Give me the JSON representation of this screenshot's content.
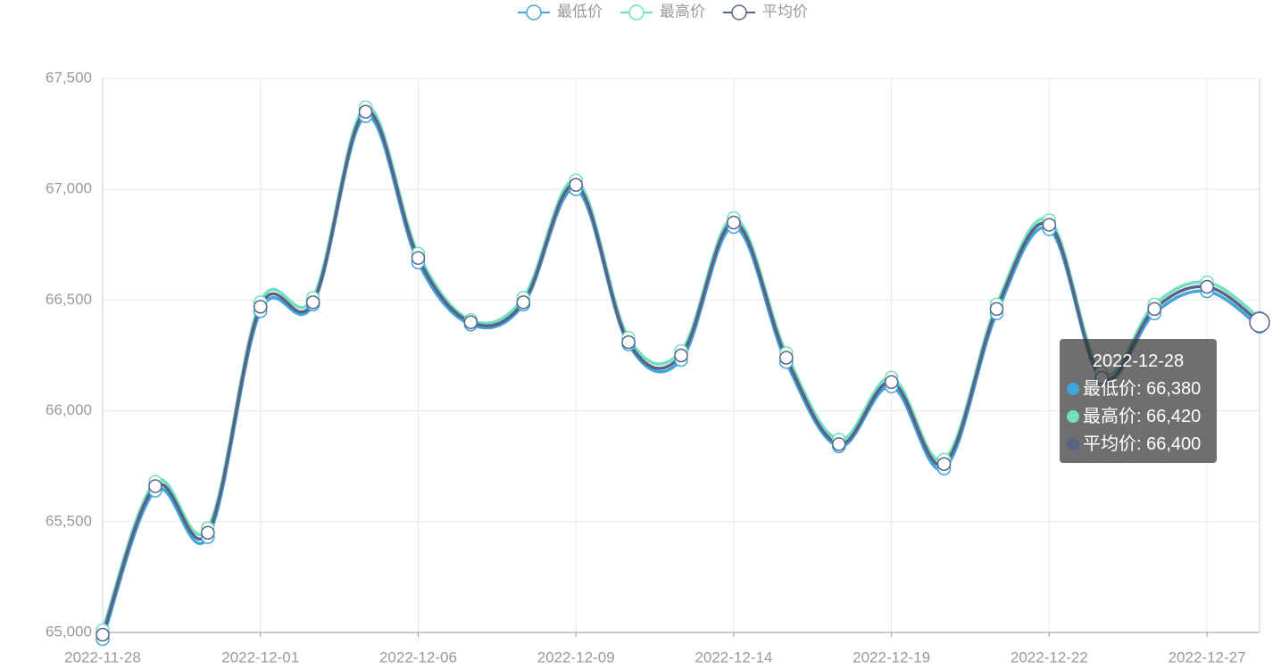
{
  "chart_data": {
    "type": "line",
    "smooth": true,
    "grid": true,
    "categories": [
      "2022-11-28",
      null,
      null,
      "2022-12-01",
      null,
      null,
      "2022-12-06",
      null,
      null,
      "2022-12-09",
      null,
      null,
      "2022-12-14",
      null,
      null,
      "2022-12-19",
      null,
      null,
      "2022-12-22",
      null,
      null,
      "2022-12-27",
      null
    ],
    "series": [
      {
        "name": "最低价",
        "color": "#3fa7dc",
        "values": [
          64970,
          65640,
          65430,
          66450,
          66480,
          67330,
          66670,
          66390,
          66480,
          67000,
          66300,
          66230,
          66830,
          66220,
          65840,
          66110,
          65740,
          66440,
          66820,
          66140,
          66440,
          66540,
          66380
        ]
      },
      {
        "name": "最高价",
        "color": "#6fe0c0",
        "values": [
          65010,
          65680,
          65470,
          66490,
          66510,
          67370,
          66710,
          66410,
          66510,
          67040,
          66330,
          66270,
          66870,
          66260,
          65870,
          66150,
          65780,
          66480,
          66860,
          66170,
          66480,
          66580,
          66420
        ]
      },
      {
        "name": "平均价",
        "color": "#5b6288",
        "values": [
          64990,
          65660,
          65450,
          66470,
          66490,
          67350,
          66690,
          66400,
          66490,
          67020,
          66310,
          66250,
          66850,
          66240,
          65850,
          66130,
          65760,
          66460,
          66840,
          66150,
          66460,
          66560,
          66400
        ]
      }
    ],
    "ylim": [
      65000,
      67500
    ],
    "yticks": [
      {
        "value": 65000,
        "label": "65,000"
      },
      {
        "value": 65500,
        "label": "65,500"
      },
      {
        "value": 66000,
        "label": "66,000"
      },
      {
        "value": 66500,
        "label": "66,500"
      },
      {
        "value": 67000,
        "label": "67,000"
      },
      {
        "value": 67500,
        "label": "67,500"
      }
    ],
    "tooltip": {
      "index": 22,
      "title": "2022-12-28",
      "rows": [
        "最低价: 66,380",
        "最高价: 66,420",
        "平均价: 66,400"
      ]
    }
  }
}
